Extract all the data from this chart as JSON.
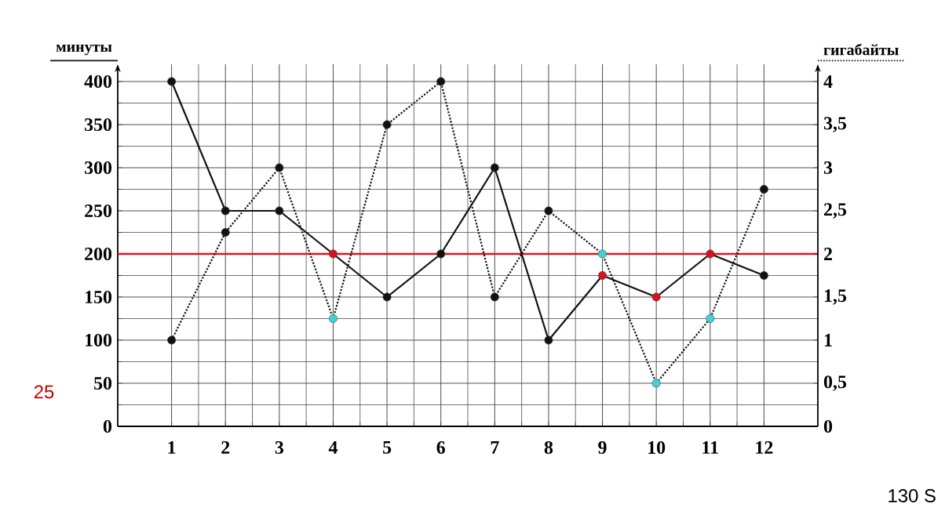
{
  "chart_data": {
    "type": "line",
    "ylabel": "минуты",
    "y2label": "гигабайты",
    "categories": [
      "1",
      "2",
      "3",
      "4",
      "5",
      "6",
      "7",
      "8",
      "9",
      "10",
      "11",
      "12"
    ],
    "series": [
      {
        "color": "#111111",
        "line_style": "solid",
        "values": [
          400,
          250,
          250,
          200,
          150,
          200,
          300,
          100,
          175,
          150,
          200,
          175
        ],
        "colors": [
          "#111111",
          "#111111",
          "#111111",
          "#d8121c",
          "#111111",
          "#111111",
          "#111111",
          "#111111",
          "#d8121c",
          "#d8121c",
          "#d8121c",
          "#111111"
        ]
      },
      {
        "color": "#111111",
        "line_style": "dotted",
        "axis": "y2",
        "values": [
          1,
          2.25,
          3,
          1.25,
          3.5,
          4,
          1.5,
          2.5,
          2,
          0.5,
          1.25,
          2.75
        ],
        "colors": [
          "#111111",
          "#111111",
          "#111111",
          "#3fd3d6",
          "#111111",
          "#111111",
          "#111111",
          "#111111",
          "#3fd3d6",
          "#3fd3d6",
          "#3fd3d6",
          "#111111"
        ]
      }
    ],
    "ylim": [
      0,
      420
    ],
    "yticks": [
      0,
      50,
      100,
      150,
      200,
      250,
      300,
      350,
      400
    ],
    "y2lim": [
      0,
      4.2
    ],
    "y2ticks": [
      0,
      {
        "value": 0.5,
        "label": "0,5"
      },
      1,
      {
        "value": 1.5,
        "label": "1,5"
      },
      2,
      {
        "value": 2.5,
        "label": "2,5"
      },
      3,
      {
        "value": 3.5,
        "label": "3,5"
      },
      4
    ],
    "ref_lines": [
      {
        "axis": "y",
        "value": 200,
        "color": "#e0151d"
      }
    ],
    "grid": true,
    "marker": "circle",
    "annotations": [
      "25",
      "130 S"
    ]
  }
}
